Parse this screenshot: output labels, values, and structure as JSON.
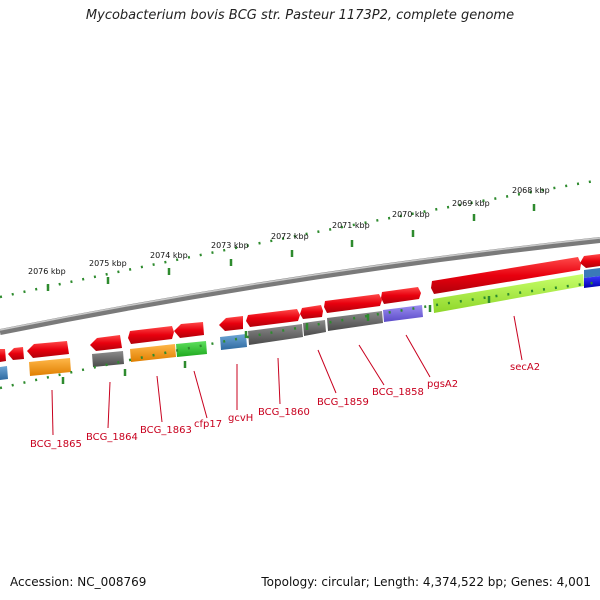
{
  "title": "Mycobacterium bovis BCG str. Pasteur 1173P2, complete genome",
  "footer": {
    "accession": "Accession: NC_008769",
    "topology": "Topology: circular; Length: 4,374,522 bp; Genes: 4,001"
  },
  "colors": {
    "backbone": "#8a8a8a",
    "gene": "#e8000e",
    "tick": "#2e8b2e",
    "label": "#c8001e",
    "leader": "#c8001e"
  },
  "scale_labels": [
    "2068 kbp",
    "2069 kbp",
    "2070 kbp",
    "2071 kbp",
    "2072 kbp",
    "2073 kbp",
    "2074 kbp",
    "2075 kbp",
    "2076 kbp"
  ],
  "gene_labels": [
    "BCG_1865",
    "BCG_1864",
    "BCG_1863",
    "cfp17",
    "gcvH",
    "BCG_1860",
    "BCG_1859",
    "BCG_1858",
    "pgsA2",
    "secA2"
  ]
}
